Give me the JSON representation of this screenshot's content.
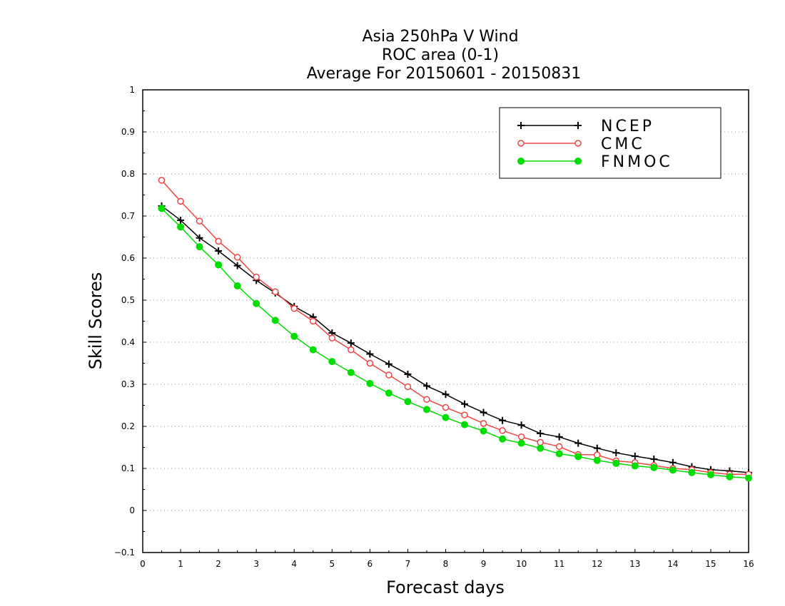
{
  "chart_data": {
    "type": "line",
    "title": [
      "Asia 250hPa V Wind",
      "ROC area (0-1)",
      "Average For 20150601 - 20150831"
    ],
    "xlabel": "Forecast days",
    "ylabel": "Skill Scores",
    "xlim": [
      0,
      16
    ],
    "ylim": [
      -0.1,
      1
    ],
    "xticks": [
      0,
      1,
      2,
      3,
      4,
      5,
      6,
      7,
      8,
      9,
      10,
      11,
      12,
      13,
      14,
      15,
      16
    ],
    "yticks": [
      -0.1,
      0,
      0.1,
      0.2,
      0.3,
      0.4,
      0.5,
      0.6,
      0.7,
      0.8,
      0.9,
      1
    ],
    "ytick_labels": [
      "−0.1",
      "0",
      "0.1",
      "0.2",
      "0.3",
      "0.4",
      "0.5",
      "0.6",
      "0.7",
      "0.8",
      "0.9",
      "1"
    ],
    "grid": "horizontal dotted",
    "legend_position": "top-right",
    "x": [
      0.5,
      1,
      1.5,
      2,
      2.5,
      3,
      3.5,
      4,
      4.5,
      5,
      5.5,
      6,
      6.5,
      7,
      7.5,
      8,
      8.5,
      9,
      9.5,
      10,
      10.5,
      11,
      11.5,
      12,
      12.5,
      13,
      13.5,
      14,
      14.5,
      15,
      15.5,
      16
    ],
    "series": [
      {
        "name": "NCEP",
        "color": "#000000",
        "marker": "plus",
        "values": [
          0.724,
          0.69,
          0.648,
          0.617,
          0.582,
          0.547,
          0.517,
          0.485,
          0.46,
          0.422,
          0.398,
          0.372,
          0.348,
          0.324,
          0.296,
          0.276,
          0.253,
          0.233,
          0.214,
          0.203,
          0.183,
          0.175,
          0.16,
          0.148,
          0.137,
          0.129,
          0.122,
          0.114,
          0.104,
          0.097,
          0.094,
          0.09
        ]
      },
      {
        "name": "CMC",
        "color": "#ee4444",
        "marker": "open-circle",
        "values": [
          0.785,
          0.735,
          0.688,
          0.64,
          0.602,
          0.555,
          0.52,
          0.48,
          0.45,
          0.41,
          0.382,
          0.35,
          0.322,
          0.294,
          0.264,
          0.245,
          0.227,
          0.207,
          0.19,
          0.175,
          0.162,
          0.152,
          0.133,
          0.132,
          0.118,
          0.114,
          0.107,
          0.1,
          0.097,
          0.09,
          0.086,
          0.086
        ]
      },
      {
        "name": "FNMOC",
        "color": "#00dd00",
        "marker": "filled-circle",
        "values": [
          0.718,
          0.674,
          0.627,
          0.584,
          0.534,
          0.492,
          0.452,
          0.414,
          0.382,
          0.354,
          0.328,
          0.302,
          0.279,
          0.259,
          0.24,
          0.221,
          0.204,
          0.189,
          0.17,
          0.16,
          0.148,
          0.135,
          0.128,
          0.119,
          0.112,
          0.106,
          0.102,
          0.096,
          0.09,
          0.085,
          0.08,
          0.077
        ]
      }
    ]
  }
}
